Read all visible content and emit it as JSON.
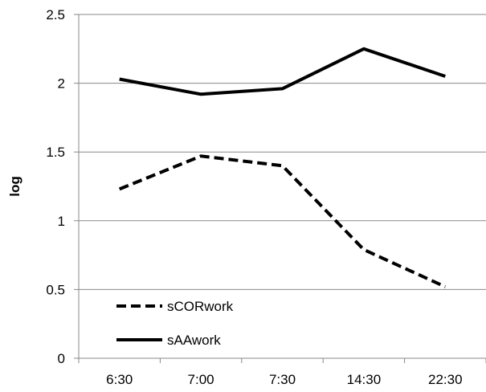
{
  "chart_data": {
    "type": "line",
    "categories": [
      "6:30",
      "7:00",
      "7:30",
      "14:30",
      "22:30"
    ],
    "series": [
      {
        "name": "sCORwork",
        "values": [
          1.23,
          1.47,
          1.4,
          0.79,
          0.52
        ],
        "style": "dashed",
        "color": "#000000"
      },
      {
        "name": "sAAwork",
        "values": [
          2.03,
          1.92,
          1.96,
          2.25,
          2.05
        ],
        "style": "solid",
        "color": "#000000"
      }
    ],
    "title": "",
    "xlabel": "",
    "ylabel": "log",
    "ylim": [
      0,
      2.5
    ],
    "yticks": [
      "0",
      "0.5",
      "1",
      "1.5",
      "2",
      "2.5"
    ],
    "grid": "horizontal",
    "legend_position": "bottom-left",
    "gridline_color": "#888888"
  }
}
